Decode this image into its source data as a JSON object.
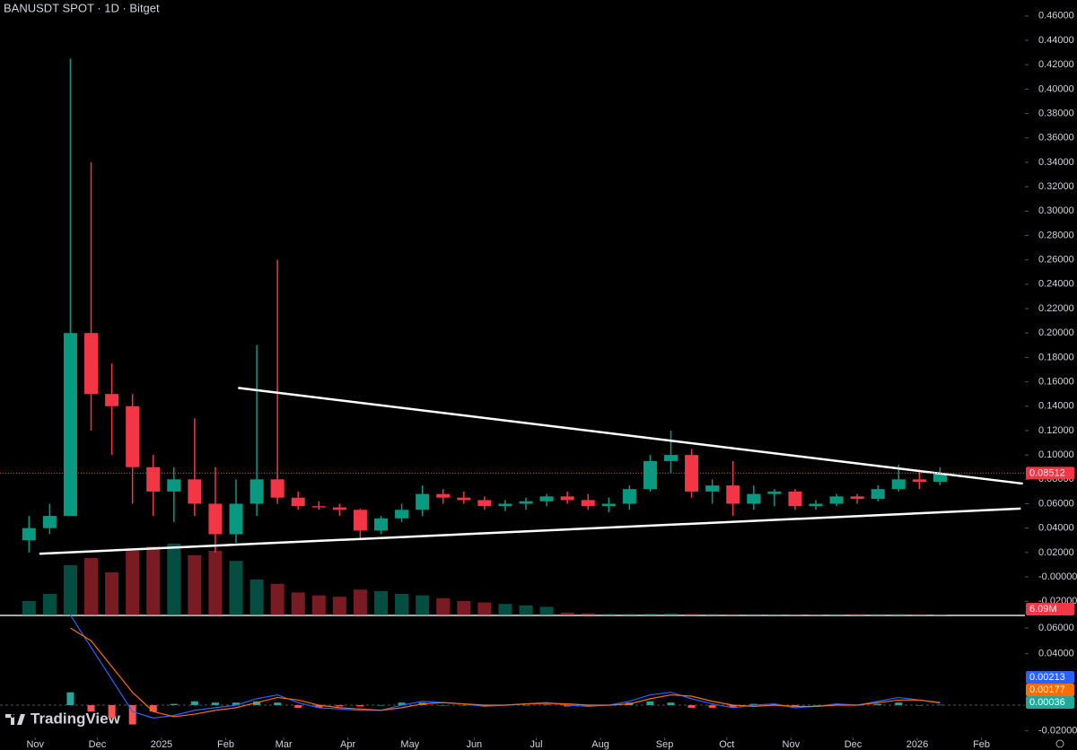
{
  "chart_data": [
    {
      "type": "candlestick",
      "title": "BANUSDT SPOT · 1D · Bitget",
      "logo": "TradingView",
      "up_color": "#089981",
      "down_color": "#f23645",
      "x": [
        -3,
        7,
        17,
        27,
        37,
        47,
        57,
        67,
        77,
        87,
        97,
        107,
        117,
        127,
        137,
        147,
        157,
        167,
        177,
        187,
        197,
        207,
        217,
        227,
        237,
        247,
        257,
        267,
        277,
        287,
        297,
        307,
        317,
        327,
        337,
        347,
        357,
        367,
        377,
        387,
        397,
        407,
        417,
        427,
        437
      ],
      "open": [
        0.03,
        0.04,
        0.05,
        0.2,
        0.15,
        0.14,
        0.09,
        0.07,
        0.08,
        0.06,
        0.035,
        0.06,
        0.08,
        0.065,
        0.058,
        0.057,
        0.055,
        0.038,
        0.048,
        0.055,
        0.068,
        0.065,
        0.063,
        0.058,
        0.06,
        0.062,
        0.066,
        0.063,
        0.058,
        0.06,
        0.072,
        0.095,
        0.1,
        0.07,
        0.075,
        0.06,
        0.068,
        0.07,
        0.058,
        0.06,
        0.066,
        0.064,
        0.072,
        0.08,
        0.078
      ],
      "high": [
        0.05,
        0.06,
        0.425,
        0.34,
        0.175,
        0.15,
        0.1,
        0.09,
        0.13,
        0.09,
        0.08,
        0.19,
        0.26,
        0.07,
        0.062,
        0.06,
        0.056,
        0.05,
        0.06,
        0.075,
        0.072,
        0.07,
        0.066,
        0.063,
        0.065,
        0.068,
        0.07,
        0.068,
        0.065,
        0.075,
        0.1,
        0.12,
        0.105,
        0.08,
        0.095,
        0.075,
        0.072,
        0.072,
        0.063,
        0.068,
        0.068,
        0.075,
        0.092,
        0.088,
        0.09
      ],
      "low": [
        0.02,
        0.035,
        0.05,
        0.12,
        0.1,
        0.06,
        0.05,
        0.045,
        0.05,
        0.02,
        0.028,
        0.05,
        0.06,
        0.055,
        0.055,
        0.05,
        0.03,
        0.035,
        0.045,
        0.05,
        0.06,
        0.06,
        0.055,
        0.054,
        0.055,
        0.058,
        0.06,
        0.055,
        0.053,
        0.055,
        0.07,
        0.085,
        0.065,
        0.06,
        0.05,
        0.055,
        0.058,
        0.055,
        0.055,
        0.058,
        0.06,
        0.062,
        0.07,
        0.072,
        0.075
      ],
      "close": [
        0.04,
        0.05,
        0.2,
        0.15,
        0.14,
        0.09,
        0.07,
        0.08,
        0.06,
        0.035,
        0.06,
        0.08,
        0.065,
        0.058,
        0.057,
        0.055,
        0.038,
        0.048,
        0.055,
        0.068,
        0.065,
        0.063,
        0.058,
        0.06,
        0.062,
        0.066,
        0.063,
        0.058,
        0.06,
        0.072,
        0.095,
        0.1,
        0.07,
        0.075,
        0.06,
        0.068,
        0.07,
        0.058,
        0.06,
        0.066,
        0.064,
        0.072,
        0.08,
        0.078,
        0.08512
      ],
      "volume": [
        100,
        150,
        350,
        400,
        300,
        450,
        480,
        500,
        420,
        450,
        380,
        250,
        220,
        160,
        140,
        130,
        180,
        170,
        150,
        140,
        120,
        100,
        90,
        80,
        70,
        60,
        20,
        15,
        10,
        10,
        12,
        14,
        10,
        9,
        8,
        8,
        7,
        7,
        7,
        8,
        9,
        9,
        9,
        8,
        6.09
      ],
      "volume_last_label": "6.09M",
      "trendlines": [
        {
          "x": [
            98,
            477
          ],
          "y": [
            0.155,
            0.0765
          ]
        },
        {
          "x": [
            2,
            476
          ],
          "y": [
            0.019,
            0.056
          ]
        }
      ],
      "trendline_color": "#ffffff",
      "xlim": [
        -17,
        478
      ],
      "xticks": [
        {
          "value": 0,
          "label": "Nov"
        },
        {
          "value": 30,
          "label": "Dec"
        },
        {
          "value": 61,
          "label": "2025"
        },
        {
          "value": 92,
          "label": "Feb"
        },
        {
          "value": 120,
          "label": "Mar"
        },
        {
          "value": 151,
          "label": "Apr"
        },
        {
          "value": 181,
          "label": "May"
        },
        {
          "value": 212,
          "label": "Jun"
        },
        {
          "value": 242,
          "label": "Jul"
        },
        {
          "value": 273,
          "label": "Aug"
        },
        {
          "value": 304,
          "label": "Sep"
        },
        {
          "value": 334,
          "label": "Oct"
        },
        {
          "value": 365,
          "label": "Nov"
        },
        {
          "value": 395,
          "label": "Dec"
        },
        {
          "value": 426,
          "label": "2026"
        },
        {
          "value": 457,
          "label": "Feb"
        }
      ],
      "ylim": [
        -0.0316,
        0.4731
      ],
      "yticks": [
        {
          "value": 0.46,
          "label": "0.46000"
        },
        {
          "value": 0.44,
          "label": "0.44000"
        },
        {
          "value": 0.42,
          "label": "0.42000"
        },
        {
          "value": 0.4,
          "label": "0.40000"
        },
        {
          "value": 0.38,
          "label": "0.38000"
        },
        {
          "value": 0.36,
          "label": "0.36000"
        },
        {
          "value": 0.34,
          "label": "0.34000"
        },
        {
          "value": 0.32,
          "label": "0.32000"
        },
        {
          "value": 0.3,
          "label": "0.30000"
        },
        {
          "value": 0.28,
          "label": "0.28000"
        },
        {
          "value": 0.26,
          "label": "0.26000"
        },
        {
          "value": 0.24,
          "label": "0.24000"
        },
        {
          "value": 0.22,
          "label": "0.22000"
        },
        {
          "value": 0.2,
          "label": "0.20000"
        },
        {
          "value": 0.18,
          "label": "0.18000"
        },
        {
          "value": 0.16,
          "label": "0.16000"
        },
        {
          "value": 0.14,
          "label": "0.14000"
        },
        {
          "value": 0.12,
          "label": "0.12000"
        },
        {
          "value": 0.1,
          "label": "0.10000"
        },
        {
          "value": 0.08,
          "label": "0.08000"
        },
        {
          "value": 0.06,
          "label": "0.06000"
        },
        {
          "value": 0.04,
          "label": "0.04000"
        },
        {
          "value": 0.02,
          "label": "0.02000"
        },
        {
          "value": 0,
          "label": "-0.00000"
        },
        {
          "value": -0.02,
          "label": "-0.02000"
        }
      ]
    },
    {
      "type": "macd",
      "x": [
        -3,
        7,
        17,
        27,
        37,
        47,
        57,
        67,
        77,
        87,
        97,
        107,
        117,
        127,
        137,
        147,
        157,
        167,
        177,
        187,
        197,
        207,
        217,
        227,
        237,
        247,
        257,
        267,
        277,
        287,
        297,
        307,
        317,
        327,
        337,
        347,
        357,
        367,
        377,
        387,
        397,
        407,
        417,
        427,
        437
      ],
      "macd": [
        null,
        null,
        0.07,
        0.045,
        0.02,
        -0.005,
        -0.01,
        -0.008,
        -0.004,
        -0.002,
        0,
        0.005,
        0.008,
        0.002,
        -0.002,
        -0.003,
        -0.004,
        -0.004,
        0,
        0.003,
        0.002,
        0.001,
        -0.001,
        0,
        0.001,
        0.002,
        0,
        -0.001,
        0,
        0.003,
        0.008,
        0.01,
        0.005,
        0.001,
        -0.002,
        0,
        0.001,
        -0.002,
        -0.001,
        0.001,
        0,
        0.003,
        0.006,
        0.004,
        0.00213
      ],
      "signal": [
        null,
        null,
        0.06,
        0.05,
        0.03,
        0.01,
        -0.005,
        -0.009,
        -0.007,
        -0.004,
        -0.002,
        0.002,
        0.006,
        0.004,
        0,
        -0.002,
        -0.003,
        -0.004,
        -0.002,
        0.001,
        0.002,
        0.001,
        0,
        0,
        0.001,
        0.0015,
        0.001,
        0,
        0,
        0.001,
        0.005,
        0.008,
        0.007,
        0.003,
        0,
        -0.001,
        0,
        -0.001,
        -0.001,
        0,
        0,
        0.002,
        0.004,
        0.004,
        0.00177
      ],
      "histogram": [
        null,
        null,
        0.01,
        -0.005,
        -0.01,
        -0.015,
        -0.005,
        0.001,
        0.003,
        0.002,
        0.002,
        0.003,
        0.002,
        -0.002,
        -0.002,
        -0.001,
        -0.001,
        0,
        0.002,
        0.002,
        0,
        0,
        -0.001,
        0,
        0,
        0.0005,
        -0.001,
        -0.001,
        0,
        0.002,
        0.003,
        0.002,
        -0.002,
        -0.002,
        -0.002,
        0.001,
        0.001,
        -0.001,
        0,
        0.001,
        0,
        0.001,
        0.002,
        0,
        0.00036
      ],
      "macd_color": "#2962ff",
      "signal_color": "#ff6d00",
      "hist_up_color": "#26a69a",
      "hist_down_color": "#ff5252",
      "xlim": [
        -17,
        478
      ],
      "ylim": [
        -0.0251,
        0.067
      ],
      "yticks": [
        {
          "value": 0.06,
          "label": "0.06000"
        },
        {
          "value": 0.04,
          "label": "0.04000"
        },
        {
          "value": -0.02,
          "label": "-0.02000"
        }
      ]
    }
  ]
}
